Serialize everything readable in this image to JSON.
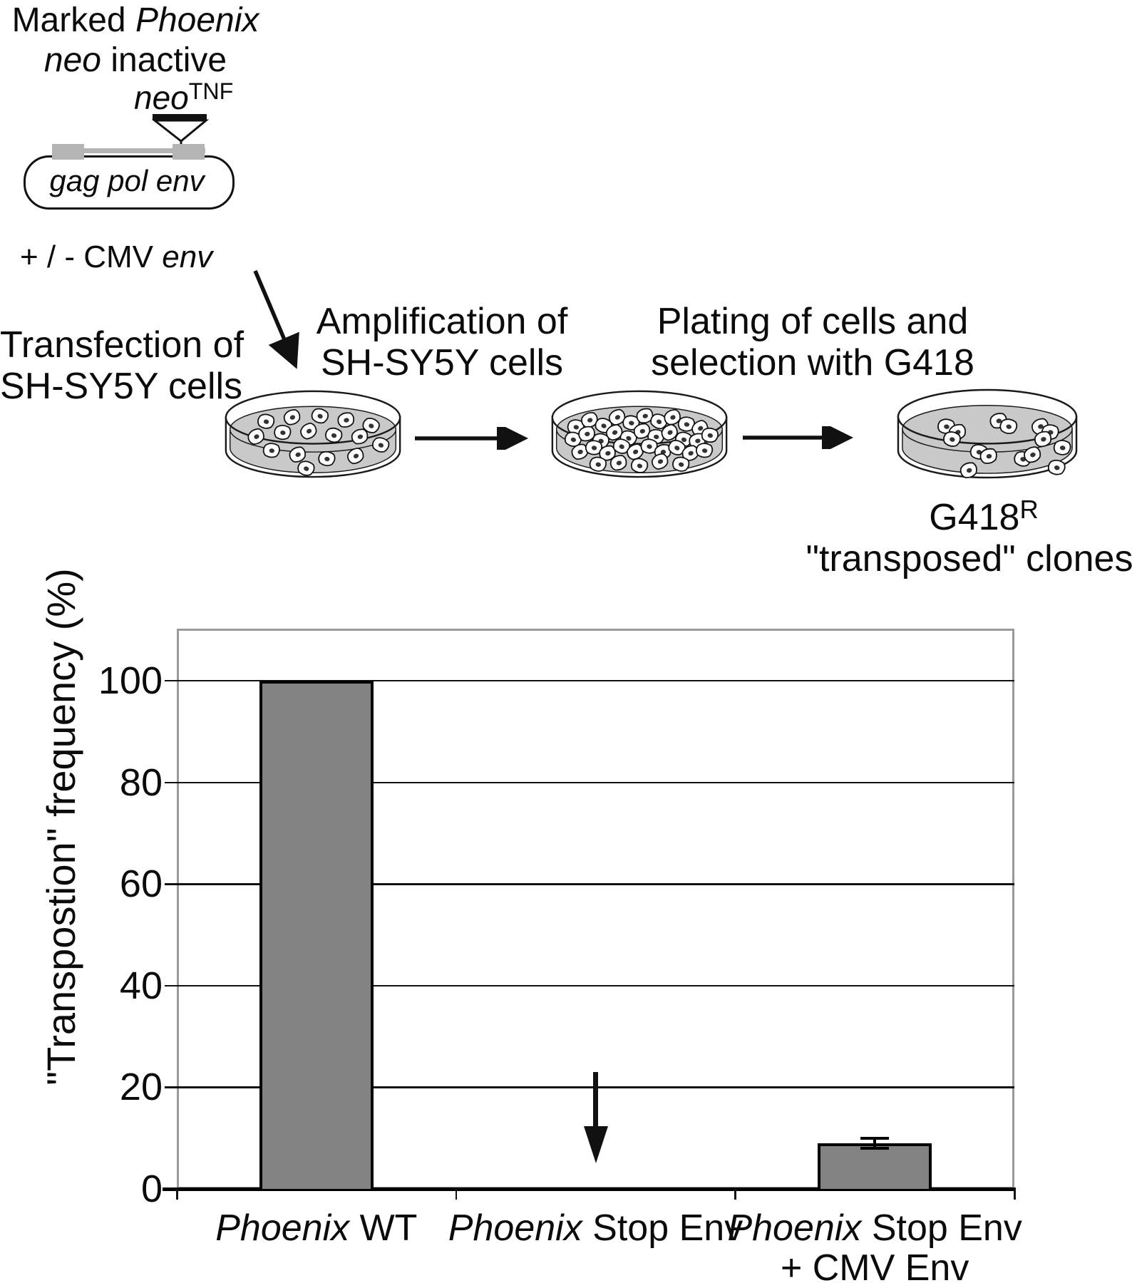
{
  "figure": {
    "title": {
      "line1": [
        {
          "t": "Marked "
        },
        {
          "t": "Phoenix",
          "i": true
        }
      ],
      "line2": [
        {
          "t": "neo",
          "i": true
        },
        {
          "t": " inactive"
        }
      ]
    },
    "construct": {
      "insert_label": [
        {
          "t": "neo",
          "i": true
        },
        {
          "t": "TNF",
          "sup": true
        }
      ],
      "plasmid_gene_label": [
        {
          "t": "gag pol env",
          "i": true
        }
      ],
      "env_plasmid_label": [
        {
          "t": "+ / - CMV "
        },
        {
          "t": "env",
          "i": true
        }
      ]
    },
    "steps": [
      {
        "line1": "Transfection of",
        "line2": "SH-SY5Y cells",
        "dish_density": "sparse"
      },
      {
        "line1": "Amplification of",
        "line2": "SH-SY5Y cells",
        "dish_density": "dense"
      },
      {
        "line1": "Plating of cells and",
        "line2": "selection with G418",
        "dish_density": "colonies"
      }
    ],
    "result": {
      "line1": [
        {
          "t": "G418"
        },
        {
          "t": "R",
          "sup": true
        }
      ],
      "line2": [
        {
          "t": "\"transposed\" clones"
        }
      ]
    }
  },
  "chart_data": {
    "type": "bar",
    "title": "",
    "ylabel": "\"Transpostion\" frequency (%)",
    "xlabel": "",
    "categories": [
      "Phoenix WT",
      "Phoenix Stop Env",
      "Phoenix Stop Env + CMV Env"
    ],
    "categories_rich": [
      {
        "line1": [
          {
            "t": "Phoenix",
            "i": true
          },
          {
            "t": " WT"
          }
        ]
      },
      {
        "line1": [
          {
            "t": "Phoenix",
            "i": true
          },
          {
            "t": " Stop Env"
          }
        ]
      },
      {
        "line1": [
          {
            "t": "Phoenix",
            "i": true
          },
          {
            "t": " Stop Env"
          }
        ],
        "line2": [
          {
            "t": "+ CMV Env"
          }
        ]
      }
    ],
    "values": [
      100,
      0,
      9
    ],
    "error_bars": [
      null,
      null,
      1
    ],
    "yticks": [
      0,
      20,
      40,
      60,
      80,
      100
    ],
    "ylim": [
      0,
      110
    ],
    "grid": "horizontal",
    "legend": null,
    "bar_color": "#828282",
    "frame_color": "#9a9a9a",
    "annotation": {
      "type": "down-arrow",
      "category_index": 1,
      "from_value": 23,
      "to_value": 5
    }
  }
}
